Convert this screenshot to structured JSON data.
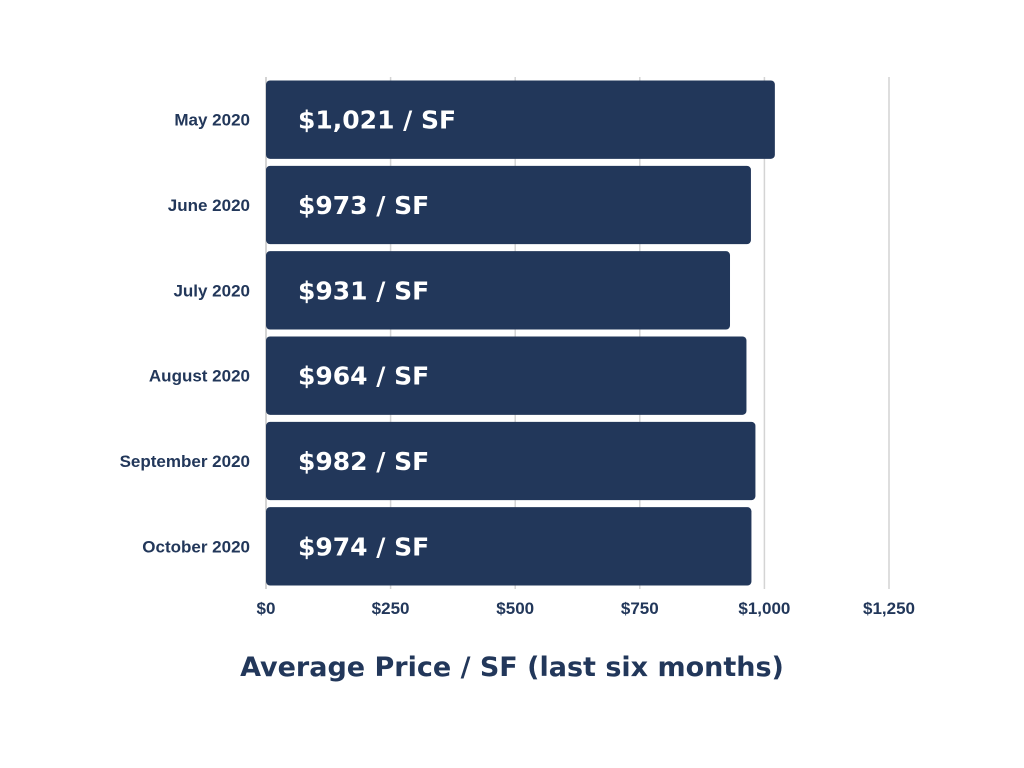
{
  "chart_data": {
    "type": "bar",
    "orientation": "horizontal",
    "categories": [
      "May 2020",
      "June 2020",
      "July 2020",
      "August 2020",
      "September 2020",
      "October 2020"
    ],
    "values": [
      1021,
      973,
      931,
      964,
      982,
      974
    ],
    "data_labels": [
      "$1,021 / SF",
      "$973 / SF",
      "$931 / SF",
      "$964 / SF",
      "$982 / SF",
      "$974 / SF"
    ],
    "xlabel": "Average Price / SF (last six months)",
    "ylabel": "",
    "xlim": [
      0,
      1250
    ],
    "x_ticks": [
      0,
      250,
      500,
      750,
      1000,
      1250
    ],
    "x_tick_labels": [
      "$0",
      "$250",
      "$500",
      "$750",
      "$1,000",
      "$1,250"
    ],
    "grid": "vertical",
    "legend": "none"
  },
  "colors": {
    "bar": "#22375a",
    "bar_text": "#ffffff",
    "label_text": "#22375a",
    "grid": "#d4d4d4"
  }
}
